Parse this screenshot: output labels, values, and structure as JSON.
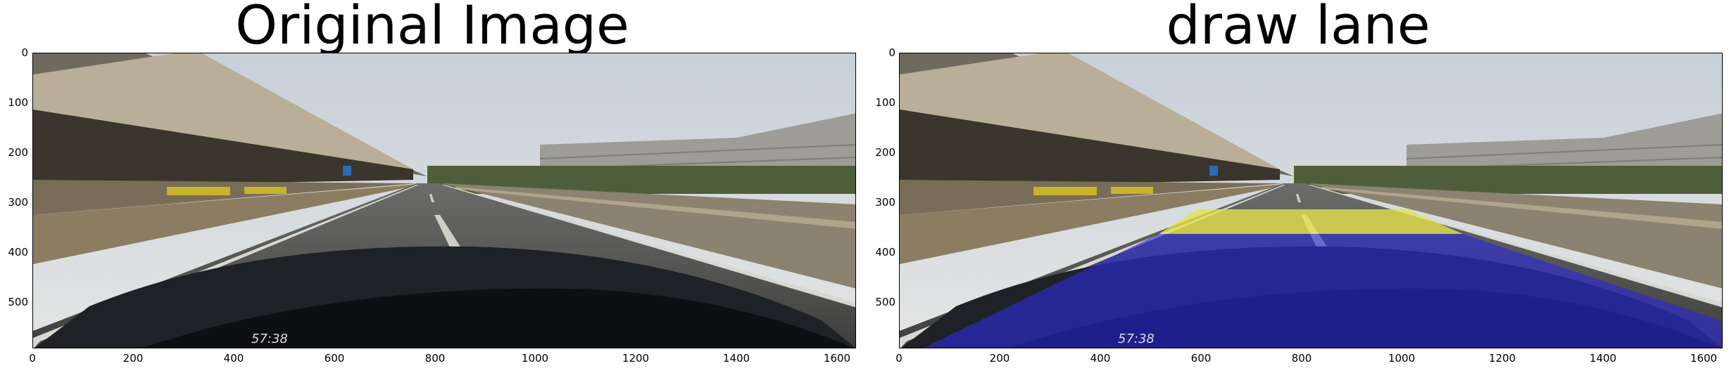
{
  "panels": [
    {
      "title": "Original Image",
      "overlay": false
    },
    {
      "title": "draw lane",
      "overlay": true
    }
  ],
  "axes": {
    "y_ticks": [
      "0",
      "100",
      "200",
      "300",
      "400",
      "500"
    ],
    "x_ticks": [
      "0",
      "200",
      "400",
      "600",
      "800",
      "1000",
      "1200",
      "1400",
      "1600"
    ]
  },
  "overlay_colors": {
    "lane": "#2a2ad8",
    "band": "#e6e44a"
  },
  "timestamp_text": "57:38"
}
